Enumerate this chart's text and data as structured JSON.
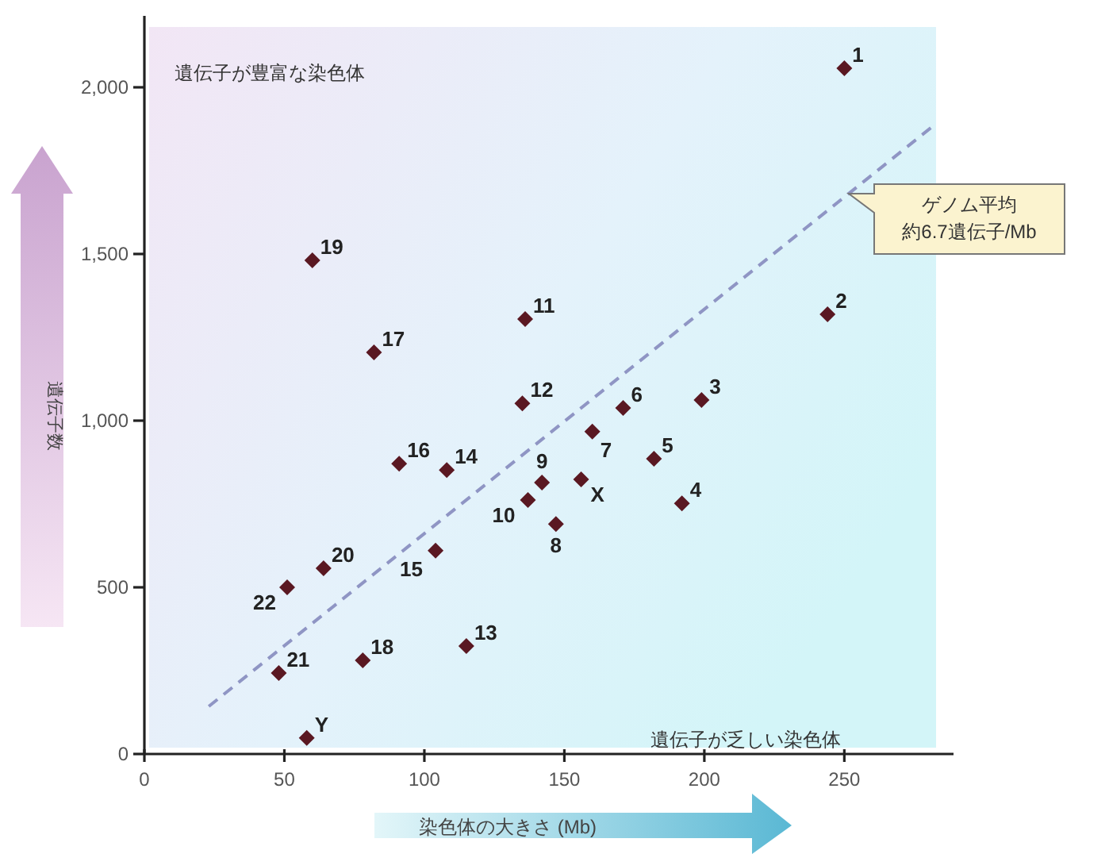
{
  "chart_data": {
    "type": "scatter",
    "xlabel": "染色体の大きさ (Mb)",
    "ylabel": "遺伝子数",
    "xlim": [
      0,
      289
    ],
    "ylim": [
      0,
      2200
    ],
    "xticks": [
      0,
      50,
      100,
      150,
      200,
      250
    ],
    "yticks": [
      0,
      500,
      {
        "value": 1000,
        "label": "1,000"
      },
      {
        "value": 1500,
        "label": "1,500"
      },
      {
        "value": 2000,
        "label": "2,000"
      }
    ],
    "series": [
      {
        "marker": "diamond",
        "color": "#5a1822",
        "x": [
          250,
          244,
          199,
          192,
          182,
          171,
          160,
          147,
          142,
          137,
          136,
          135,
          115,
          108,
          104,
          91,
          82,
          78,
          60,
          64,
          48,
          51,
          156,
          58
        ],
        "values": [
          2057,
          1319,
          1062,
          752,
          886,
          1038,
          967,
          690,
          814,
          762,
          1305,
          1052,
          324,
          852,
          610,
          871,
          1205,
          281,
          1481,
          557,
          243,
          500,
          824,
          48
        ]
      },
      {
        "type": "line",
        "line_style": "dashed",
        "color": "#8f95c4",
        "x": [
          23,
          282
        ],
        "values": [
          143,
          1886
        ]
      }
    ],
    "annotations": [
      {
        "text": "1",
        "x": 250,
        "y": 2057
      },
      {
        "text": "2",
        "x": 244,
        "y": 1319
      },
      {
        "text": "3",
        "x": 199,
        "y": 1062
      },
      {
        "text": "4",
        "x": 192,
        "y": 752
      },
      {
        "text": "5",
        "x": 182,
        "y": 886
      },
      {
        "text": "6",
        "x": 171,
        "y": 1038
      },
      {
        "text": "7",
        "x": 160,
        "y": 967
      },
      {
        "text": "8",
        "x": 147,
        "y": 690
      },
      {
        "text": "9",
        "x": 142,
        "y": 814
      },
      {
        "text": "10",
        "x": 137,
        "y": 762
      },
      {
        "text": "11",
        "x": 136,
        "y": 1305
      },
      {
        "text": "12",
        "x": 135,
        "y": 1052
      },
      {
        "text": "13",
        "x": 115,
        "y": 324
      },
      {
        "text": "14",
        "x": 108,
        "y": 852
      },
      {
        "text": "15",
        "x": 104,
        "y": 610
      },
      {
        "text": "16",
        "x": 91,
        "y": 871
      },
      {
        "text": "17",
        "x": 82,
        "y": 1205
      },
      {
        "text": "18",
        "x": 78,
        "y": 281
      },
      {
        "text": "19",
        "x": 60,
        "y": 1481
      },
      {
        "text": "20",
        "x": 64,
        "y": 557
      },
      {
        "text": "21",
        "x": 48,
        "y": 243
      },
      {
        "text": "22",
        "x": 51,
        "y": 500
      },
      {
        "text": "X",
        "x": 156,
        "y": 824
      },
      {
        "text": "Y",
        "x": 58,
        "y": 48
      },
      "ゲノム平均",
      "約6.7遺伝子/Mb",
      "遺伝子が豊富な染色体",
      "遺伝子が乏しい染色体"
    ]
  }
}
